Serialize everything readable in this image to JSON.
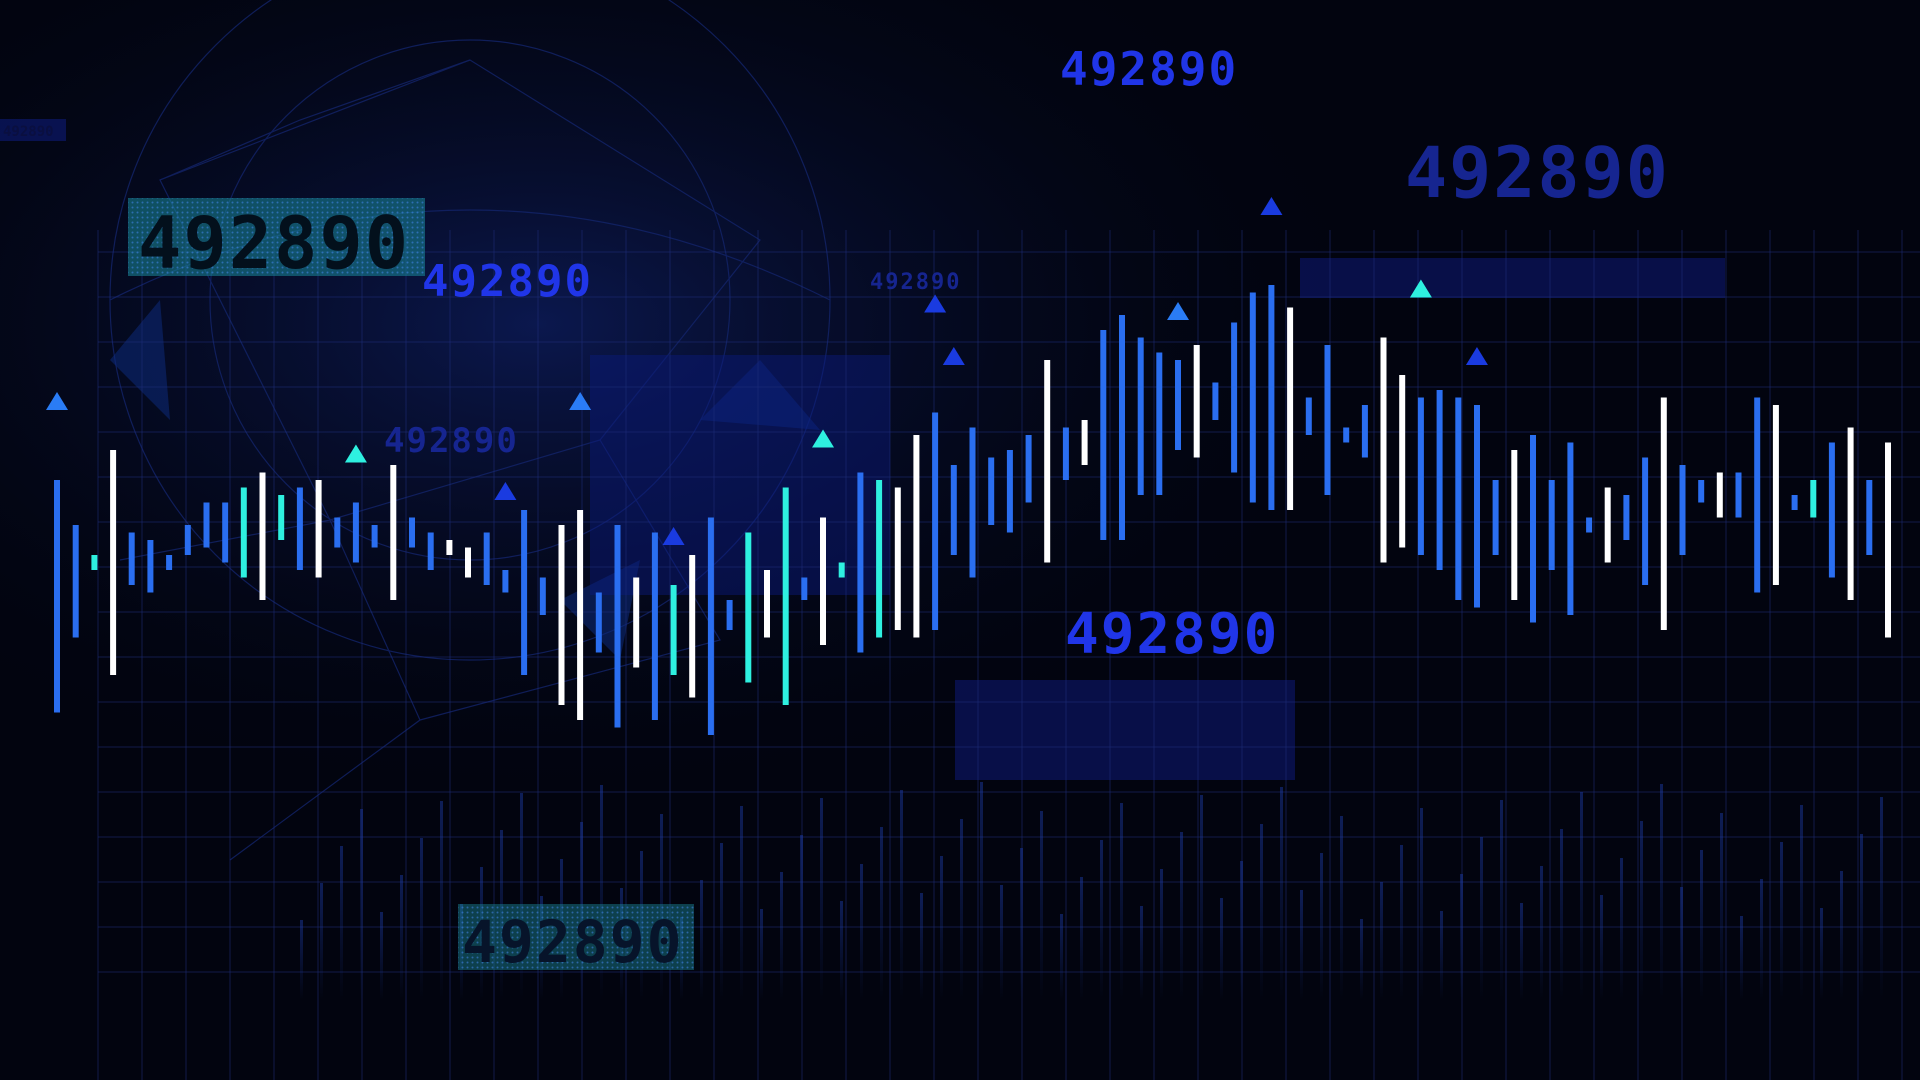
{
  "palette": {
    "background": "#02040f",
    "grid": "#1e2d7a",
    "bar_blue": "#2a6ef0",
    "bar_white": "#ffffff",
    "bar_cyan": "#2ef0e0",
    "label_blue": "#2035e8",
    "label_dim": "#162590",
    "panel": "#0e1a78",
    "teal_box": "#1a8a9a"
  },
  "labels": [
    {
      "text": "492890",
      "style": "boxed"
    },
    {
      "text": "492890",
      "style": "bright"
    },
    {
      "text": "492890",
      "style": "dim"
    },
    {
      "text": "492890",
      "style": "tiny"
    },
    {
      "text": "492890",
      "style": "bright"
    },
    {
      "text": "492890",
      "style": "dim-large"
    },
    {
      "text": "492890",
      "style": "bright-large"
    },
    {
      "text": "492890",
      "style": "boxed"
    },
    {
      "text": "492890",
      "style": "tiny-corner"
    }
  ],
  "chart_data": {
    "type": "bar",
    "note_free": true,
    "ylim": [
      0,
      100
    ],
    "bars": [
      {
        "low": 25,
        "high": 56,
        "color": "blue"
      },
      {
        "low": 35,
        "high": 50,
        "color": "blue"
      },
      {
        "low": 44,
        "high": 46,
        "color": "cyan"
      },
      {
        "low": 30,
        "high": 60,
        "color": "white"
      },
      {
        "low": 42,
        "high": 49,
        "color": "blue"
      },
      {
        "low": 41,
        "high": 48,
        "color": "blue"
      },
      {
        "low": 44,
        "high": 46,
        "color": "blue"
      },
      {
        "low": 46,
        "high": 50,
        "color": "blue"
      },
      {
        "low": 47,
        "high": 53,
        "color": "blue"
      },
      {
        "low": 45,
        "high": 53,
        "color": "blue"
      },
      {
        "low": 43,
        "high": 55,
        "color": "cyan"
      },
      {
        "low": 40,
        "high": 57,
        "color": "white"
      },
      {
        "low": 48,
        "high": 54,
        "color": "cyan"
      },
      {
        "low": 44,
        "high": 55,
        "color": "blue"
      },
      {
        "low": 43,
        "high": 56,
        "color": "white"
      },
      {
        "low": 47,
        "high": 51,
        "color": "blue"
      },
      {
        "low": 45,
        "high": 53,
        "color": "blue"
      },
      {
        "low": 47,
        "high": 50,
        "color": "blue"
      },
      {
        "low": 40,
        "high": 58,
        "color": "white"
      },
      {
        "low": 47,
        "high": 51,
        "color": "blue"
      },
      {
        "low": 44,
        "high": 49,
        "color": "blue"
      },
      {
        "low": 46,
        "high": 48,
        "color": "white"
      },
      {
        "low": 43,
        "high": 47,
        "color": "white"
      },
      {
        "low": 42,
        "high": 49,
        "color": "blue"
      },
      {
        "low": 41,
        "high": 44,
        "color": "blue"
      },
      {
        "low": 30,
        "high": 52,
        "color": "blue"
      },
      {
        "low": 38,
        "high": 43,
        "color": "blue"
      },
      {
        "low": 26,
        "high": 50,
        "color": "white"
      },
      {
        "low": 24,
        "high": 52,
        "color": "white"
      },
      {
        "low": 33,
        "high": 41,
        "color": "blue"
      },
      {
        "low": 23,
        "high": 50,
        "color": "blue"
      },
      {
        "low": 31,
        "high": 43,
        "color": "white"
      },
      {
        "low": 24,
        "high": 49,
        "color": "blue"
      },
      {
        "low": 30,
        "high": 42,
        "color": "cyan"
      },
      {
        "low": 27,
        "high": 46,
        "color": "white"
      },
      {
        "low": 22,
        "high": 51,
        "color": "blue"
      },
      {
        "low": 36,
        "high": 40,
        "color": "blue"
      },
      {
        "low": 29,
        "high": 49,
        "color": "cyan"
      },
      {
        "low": 35,
        "high": 44,
        "color": "white"
      },
      {
        "low": 26,
        "high": 55,
        "color": "cyan"
      },
      {
        "low": 40,
        "high": 43,
        "color": "blue"
      },
      {
        "low": 34,
        "high": 51,
        "color": "white"
      },
      {
        "low": 43,
        "high": 45,
        "color": "cyan"
      },
      {
        "low": 33,
        "high": 57,
        "color": "blue"
      },
      {
        "low": 35,
        "high": 56,
        "color": "cyan"
      },
      {
        "low": 36,
        "high": 55,
        "color": "white"
      },
      {
        "low": 35,
        "high": 62,
        "color": "white"
      },
      {
        "low": 36,
        "high": 65,
        "color": "blue"
      },
      {
        "low": 46,
        "high": 58,
        "color": "blue"
      },
      {
        "low": 43,
        "high": 63,
        "color": "blue"
      },
      {
        "low": 50,
        "high": 59,
        "color": "blue"
      },
      {
        "low": 49,
        "high": 60,
        "color": "blue"
      },
      {
        "low": 53,
        "high": 62,
        "color": "blue"
      },
      {
        "low": 45,
        "high": 72,
        "color": "white"
      },
      {
        "low": 56,
        "high": 63,
        "color": "blue"
      },
      {
        "low": 58,
        "high": 64,
        "color": "white"
      },
      {
        "low": 48,
        "high": 76,
        "color": "blue"
      },
      {
        "low": 48,
        "high": 78,
        "color": "blue"
      },
      {
        "low": 54,
        "high": 75,
        "color": "blue"
      },
      {
        "low": 54,
        "high": 73,
        "color": "blue"
      },
      {
        "low": 60,
        "high": 72,
        "color": "blue"
      },
      {
        "low": 59,
        "high": 74,
        "color": "white"
      },
      {
        "low": 64,
        "high": 69,
        "color": "blue"
      },
      {
        "low": 57,
        "high": 77,
        "color": "blue"
      },
      {
        "low": 53,
        "high": 81,
        "color": "blue"
      },
      {
        "low": 52,
        "high": 82,
        "color": "blue"
      },
      {
        "low": 52,
        "high": 79,
        "color": "white"
      },
      {
        "low": 62,
        "high": 67,
        "color": "blue"
      },
      {
        "low": 54,
        "high": 74,
        "color": "blue"
      },
      {
        "low": 61,
        "high": 63,
        "color": "blue"
      },
      {
        "low": 59,
        "high": 66,
        "color": "blue"
      },
      {
        "low": 45,
        "high": 75,
        "color": "white"
      },
      {
        "low": 47,
        "high": 70,
        "color": "white"
      },
      {
        "low": 46,
        "high": 67,
        "color": "blue"
      },
      {
        "low": 44,
        "high": 68,
        "color": "blue"
      },
      {
        "low": 40,
        "high": 67,
        "color": "blue"
      },
      {
        "low": 39,
        "high": 66,
        "color": "blue"
      },
      {
        "low": 46,
        "high": 56,
        "color": "blue"
      },
      {
        "low": 40,
        "high": 60,
        "color": "white"
      },
      {
        "low": 37,
        "high": 62,
        "color": "blue"
      },
      {
        "low": 44,
        "high": 56,
        "color": "blue"
      },
      {
        "low": 38,
        "high": 61,
        "color": "blue"
      },
      {
        "low": 49,
        "high": 51,
        "color": "blue"
      },
      {
        "low": 45,
        "high": 55,
        "color": "white"
      },
      {
        "low": 48,
        "high": 54,
        "color": "blue"
      },
      {
        "low": 42,
        "high": 59,
        "color": "blue"
      },
      {
        "low": 36,
        "high": 67,
        "color": "white"
      },
      {
        "low": 46,
        "high": 58,
        "color": "blue"
      },
      {
        "low": 53,
        "high": 56,
        "color": "blue"
      },
      {
        "low": 51,
        "high": 57,
        "color": "white"
      },
      {
        "low": 51,
        "high": 57,
        "color": "blue"
      },
      {
        "low": 41,
        "high": 67,
        "color": "blue"
      },
      {
        "low": 42,
        "high": 66,
        "color": "white"
      },
      {
        "low": 52,
        "high": 54,
        "color": "blue"
      },
      {
        "low": 51,
        "high": 56,
        "color": "cyan"
      },
      {
        "low": 43,
        "high": 61,
        "color": "blue"
      },
      {
        "low": 40,
        "high": 63,
        "color": "white"
      },
      {
        "low": 46,
        "high": 56,
        "color": "blue"
      },
      {
        "low": 35,
        "high": 61,
        "color": "white"
      }
    ],
    "ghost_bars": 80,
    "markers": 12
  }
}
